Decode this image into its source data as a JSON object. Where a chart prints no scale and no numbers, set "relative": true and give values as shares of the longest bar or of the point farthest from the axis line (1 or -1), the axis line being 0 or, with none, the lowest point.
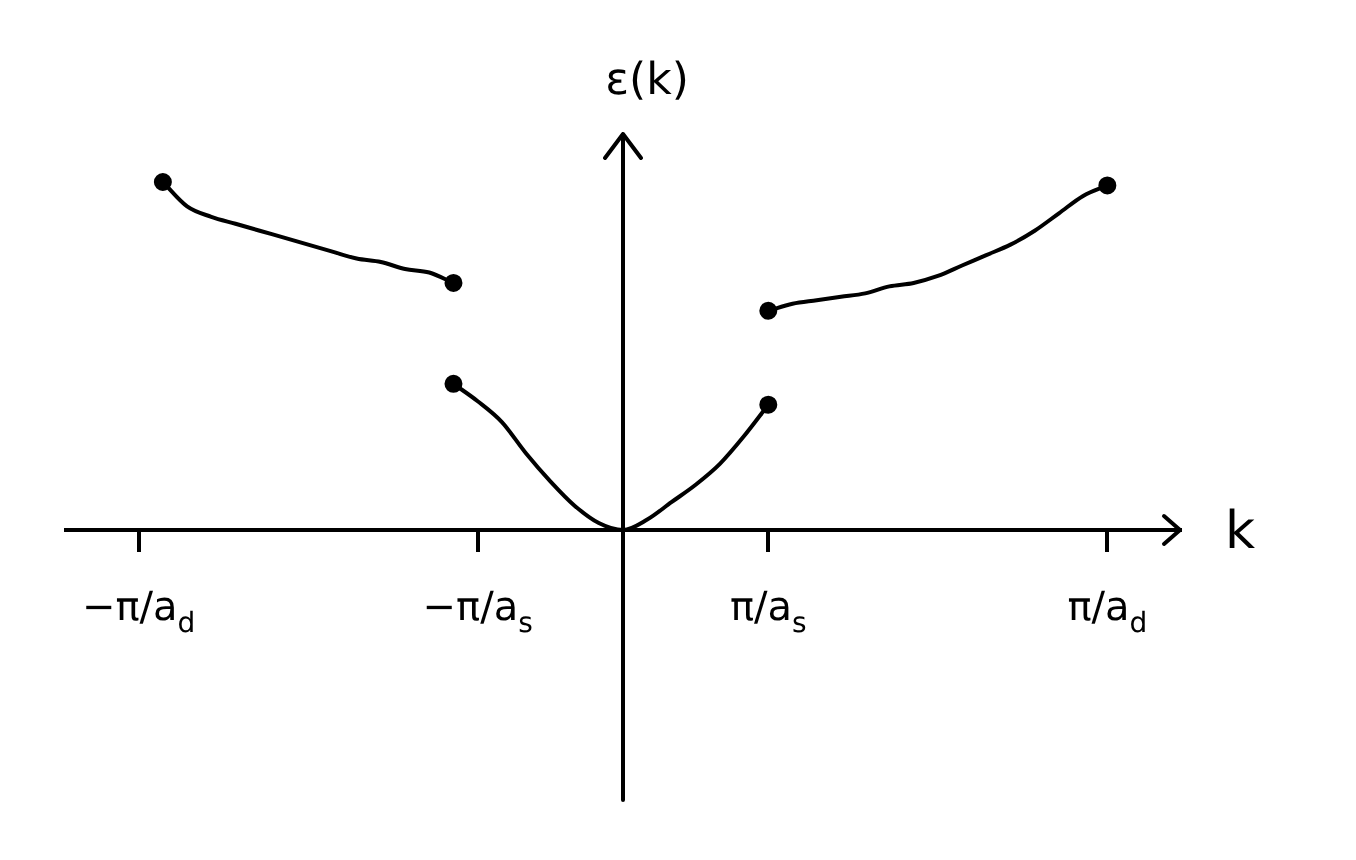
{
  "chart_data": {
    "type": "line",
    "xlabel": "k",
    "ylabel": "ε(k)",
    "relative": true,
    "tick_labels": "x",
    "line_style": "solid",
    "categories": [
      null,
      null,
      null,
      "−π/a$_{d}$",
      null,
      null,
      null,
      null,
      null,
      null,
      null,
      null,
      null,
      null,
      null,
      null,
      null,
      "−π/a$_{s}$",
      null,
      null,
      null,
      null,
      null,
      null,
      null,
      null,
      null,
      null,
      null,
      "π/a$_{s}$",
      null,
      null,
      null,
      null,
      null,
      null,
      null,
      null,
      null,
      null,
      null,
      null,
      null,
      "π/a$_{d}$",
      null,
      null,
      null
    ],
    "series": [
      {
        "color": "#000000",
        "values": [
          null,
          null,
          null,
          null,
          1.0,
          0.93,
          0.9,
          0.88,
          0.86,
          0.84,
          0.82,
          0.8,
          0.78,
          0.77,
          0.75,
          0.74,
          0.71,
          null,
          null,
          null,
          null,
          null,
          null,
          null,
          null,
          null,
          null,
          null,
          null,
          null,
          null,
          null,
          null,
          null,
          null,
          null,
          null,
          null,
          null,
          null,
          null,
          null,
          null,
          null,
          null,
          null,
          null
        ]
      },
      {
        "color": "#000000",
        "values": [
          null,
          null,
          null,
          null,
          null,
          null,
          null,
          null,
          null,
          null,
          null,
          null,
          null,
          null,
          null,
          null,
          0.42,
          0.37,
          0.31,
          0.22,
          0.14,
          0.07,
          0.02,
          0,
          0.03,
          0.08,
          0.13,
          0.19,
          0.27,
          0.36,
          null,
          null,
          null,
          null,
          null,
          null,
          null,
          null,
          null,
          null,
          null,
          null,
          null,
          null,
          null,
          null,
          null
        ]
      },
      {
        "color": "#000000",
        "values": [
          null,
          null,
          null,
          null,
          null,
          null,
          null,
          null,
          null,
          null,
          null,
          null,
          null,
          null,
          null,
          null,
          null,
          null,
          null,
          null,
          null,
          null,
          null,
          null,
          null,
          null,
          null,
          null,
          null,
          0.63,
          0.65,
          0.66,
          0.67,
          0.68,
          0.7,
          0.71,
          0.73,
          0.76,
          0.79,
          0.82,
          0.86,
          0.91,
          0.96,
          0.99,
          null,
          null,
          null
        ]
      },
      {
        "type": "scatter",
        "marker": "circle",
        "color": "#000000",
        "values": [
          null,
          null,
          null,
          null,
          1.0,
          null,
          null,
          null,
          null,
          null,
          null,
          null,
          null,
          null,
          null,
          null,
          0.42,
          null,
          null,
          null,
          null,
          null,
          null,
          null,
          null,
          null,
          null,
          null,
          null,
          0.63,
          null,
          null,
          null,
          null,
          null,
          null,
          null,
          null,
          null,
          null,
          null,
          null,
          null,
          null,
          null,
          null,
          null
        ]
      },
      {
        "type": "scatter",
        "marker": "circle",
        "color": "#000000",
        "values": [
          null,
          null,
          null,
          null,
          null,
          null,
          null,
          null,
          null,
          null,
          null,
          null,
          null,
          null,
          null,
          null,
          0.71,
          null,
          null,
          null,
          null,
          null,
          null,
          null,
          null,
          null,
          null,
          null,
          null,
          0.36,
          null,
          null,
          null,
          null,
          null,
          null,
          null,
          null,
          null,
          null,
          null,
          null,
          null,
          0.99,
          null,
          null,
          null
        ]
      }
    ]
  }
}
